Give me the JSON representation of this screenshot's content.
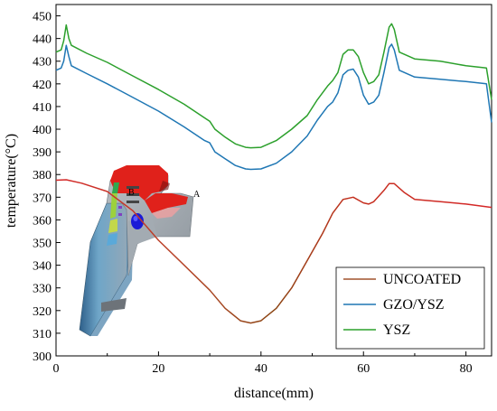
{
  "chart_data": {
    "type": "line",
    "title": "",
    "xlabel": "distance(mm)",
    "ylabel": "temperature(°C)",
    "xlim": [
      0,
      85
    ],
    "ylim": [
      300,
      455
    ],
    "xticks": [
      "0",
      "20",
      "40",
      "60",
      "80"
    ],
    "yticks": [
      "300",
      "310",
      "320",
      "330",
      "340",
      "350",
      "360",
      "370",
      "380",
      "390",
      "400",
      "410",
      "420",
      "430",
      "440",
      "450"
    ],
    "grid": false,
    "legend": "bottom-right",
    "inset_labels": {
      "a": "A",
      "b": "B"
    },
    "series": [
      {
        "name": "UNCOATED",
        "color": "#a0522d",
        "color_start": "#d62728",
        "points": [
          [
            0,
            377.5
          ],
          [
            2,
            377.7
          ],
          [
            5,
            376.2
          ],
          [
            10,
            372.5
          ],
          [
            15,
            364
          ],
          [
            20,
            351
          ],
          [
            25,
            340
          ],
          [
            30,
            329
          ],
          [
            33,
            321
          ],
          [
            36,
            315.5
          ],
          [
            38,
            314.5
          ],
          [
            40,
            315.5
          ],
          [
            43,
            321
          ],
          [
            46,
            330
          ],
          [
            49,
            342
          ],
          [
            52,
            354
          ],
          [
            54,
            363
          ],
          [
            56,
            369
          ],
          [
            58,
            370
          ],
          [
            60,
            367.5
          ],
          [
            61,
            367
          ],
          [
            62,
            368
          ],
          [
            64,
            373
          ],
          [
            65,
            376
          ],
          [
            66,
            376
          ],
          [
            68,
            372
          ],
          [
            70,
            369
          ],
          [
            75,
            368
          ],
          [
            80,
            367
          ],
          [
            85,
            365.5
          ]
        ]
      },
      {
        "name": "GZO/YSZ",
        "color": "#1f77b4",
        "points": [
          [
            0,
            426
          ],
          [
            1,
            427
          ],
          [
            1.5,
            430
          ],
          [
            2,
            437
          ],
          [
            2.5,
            432
          ],
          [
            3,
            428
          ],
          [
            6,
            424.5
          ],
          [
            10,
            420
          ],
          [
            15,
            414
          ],
          [
            20,
            408
          ],
          [
            25,
            401
          ],
          [
            29,
            395
          ],
          [
            30,
            394
          ],
          [
            31,
            390
          ],
          [
            33,
            387
          ],
          [
            35,
            384
          ],
          [
            37,
            382.5
          ],
          [
            38,
            382.3
          ],
          [
            40,
            382.5
          ],
          [
            43,
            385
          ],
          [
            46,
            390
          ],
          [
            49,
            397
          ],
          [
            51,
            404
          ],
          [
            53,
            410
          ],
          [
            54,
            412
          ],
          [
            55,
            416
          ],
          [
            56,
            424
          ],
          [
            57,
            426
          ],
          [
            58,
            426.5
          ],
          [
            59,
            423
          ],
          [
            60,
            415
          ],
          [
            61,
            411
          ],
          [
            62,
            412
          ],
          [
            63,
            415
          ],
          [
            64,
            425
          ],
          [
            65,
            436
          ],
          [
            65.5,
            437.5
          ],
          [
            66,
            435
          ],
          [
            67,
            426
          ],
          [
            70,
            423
          ],
          [
            75,
            422
          ],
          [
            80,
            421
          ],
          [
            84,
            420
          ],
          [
            85,
            403
          ]
        ]
      },
      {
        "name": "YSZ",
        "color": "#2ca02c",
        "points": [
          [
            0,
            434
          ],
          [
            1,
            435
          ],
          [
            1.5,
            439
          ],
          [
            2,
            446
          ],
          [
            2.5,
            440
          ],
          [
            3,
            437
          ],
          [
            6,
            433.5
          ],
          [
            10,
            429.5
          ],
          [
            15,
            423.5
          ],
          [
            20,
            417.5
          ],
          [
            25,
            411
          ],
          [
            29,
            405
          ],
          [
            30,
            403.5
          ],
          [
            31,
            400
          ],
          [
            33,
            396.5
          ],
          [
            35,
            393.5
          ],
          [
            37,
            392
          ],
          [
            38,
            391.8
          ],
          [
            40,
            392
          ],
          [
            43,
            395
          ],
          [
            46,
            400
          ],
          [
            49,
            406
          ],
          [
            51,
            413
          ],
          [
            53,
            419
          ],
          [
            54,
            421.5
          ],
          [
            55,
            425
          ],
          [
            56,
            433
          ],
          [
            57,
            435
          ],
          [
            58,
            435
          ],
          [
            59,
            432
          ],
          [
            60,
            425
          ],
          [
            61,
            420
          ],
          [
            62,
            421
          ],
          [
            63,
            424
          ],
          [
            64,
            434
          ],
          [
            65,
            445
          ],
          [
            65.5,
            446.5
          ],
          [
            66,
            444
          ],
          [
            67,
            434
          ],
          [
            70,
            431
          ],
          [
            75,
            430
          ],
          [
            80,
            428
          ],
          [
            84,
            427
          ],
          [
            85,
            413
          ]
        ]
      }
    ]
  }
}
